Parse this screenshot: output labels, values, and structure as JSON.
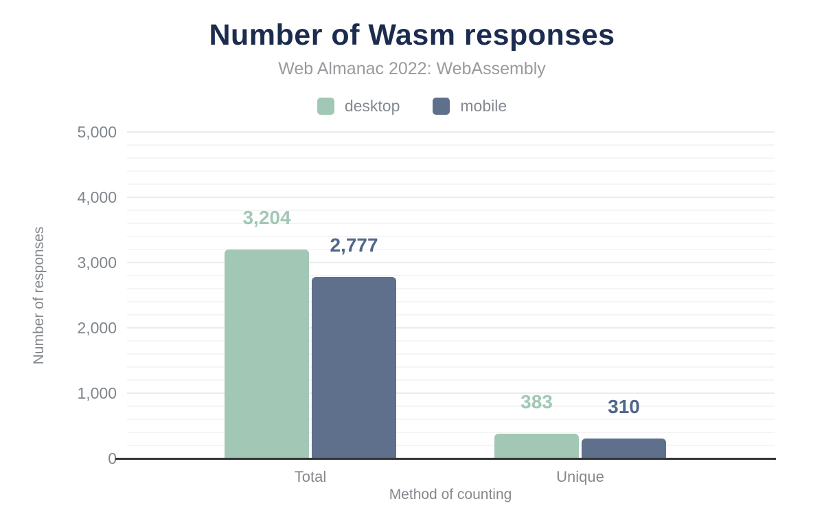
{
  "chart_data": {
    "type": "bar",
    "title": "Number of Wasm responses",
    "subtitle": "Web Almanac 2022: WebAssembly",
    "xlabel": "Method of counting",
    "ylabel": "Number of responses",
    "categories": [
      "Total",
      "Unique"
    ],
    "series": [
      {
        "name": "desktop",
        "color": "#a2c8b5",
        "label_color": "#a2c8b5",
        "values": [
          3204,
          383
        ],
        "labels": [
          "3,204",
          "383"
        ]
      },
      {
        "name": "mobile",
        "color": "#5f708d",
        "label_color": "#506589",
        "values": [
          2777,
          310
        ],
        "labels": [
          "2,777",
          "310"
        ]
      }
    ],
    "ylim": [
      0,
      5000
    ],
    "ytick_step": 1000,
    "minor_step": 200,
    "ytick_labels": [
      "0",
      "1,000",
      "2,000",
      "3,000",
      "4,000",
      "5,000"
    ],
    "grid": true,
    "legend_position": "top"
  },
  "style": {
    "title_color": "#1b2c4f",
    "axis_line_color": "#333538"
  }
}
